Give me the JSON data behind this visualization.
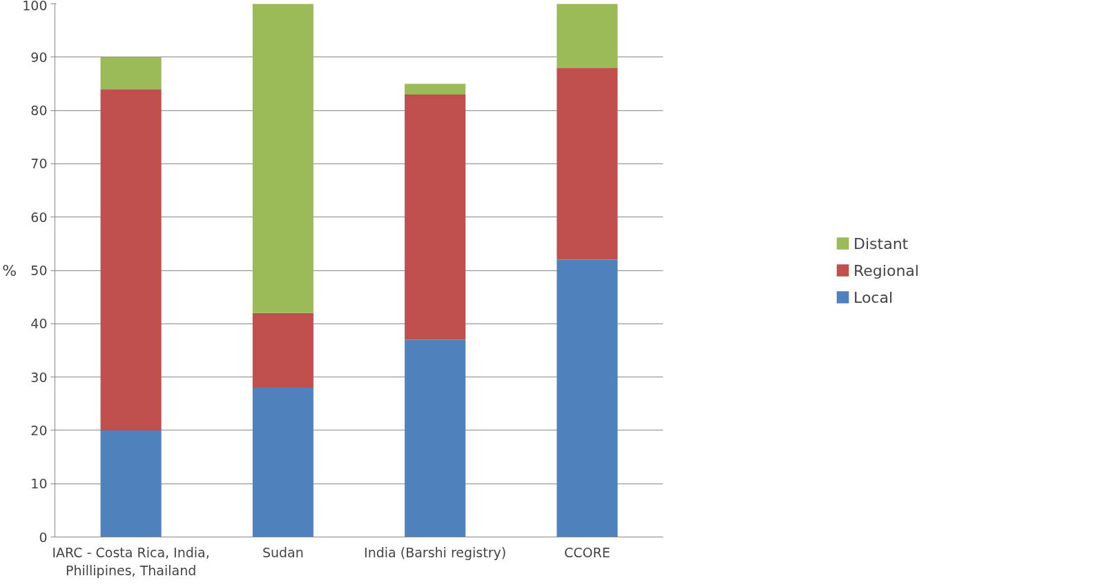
{
  "chart_data": {
    "type": "bar",
    "stacked": true,
    "ylabel": "%",
    "categories": [
      "IARC - Costa Rica, India, Phillipines, Thailand",
      "Sudan",
      "India (Barshi registry)",
      "CCORE"
    ],
    "series": [
      {
        "name": "Local",
        "color": "#4f81bd",
        "values": [
          20,
          28,
          37,
          52
        ]
      },
      {
        "name": "Regional",
        "color": "#c0504d",
        "values": [
          64,
          14,
          46,
          36
        ]
      },
      {
        "name": "Distant",
        "color": "#9bbb59",
        "values": [
          6,
          58,
          2,
          12
        ]
      }
    ],
    "ylim": [
      0,
      100
    ],
    "yticks": [
      0,
      10,
      20,
      30,
      40,
      50,
      60,
      70,
      80,
      90,
      100
    ],
    "grid": "y",
    "legend": "right"
  }
}
